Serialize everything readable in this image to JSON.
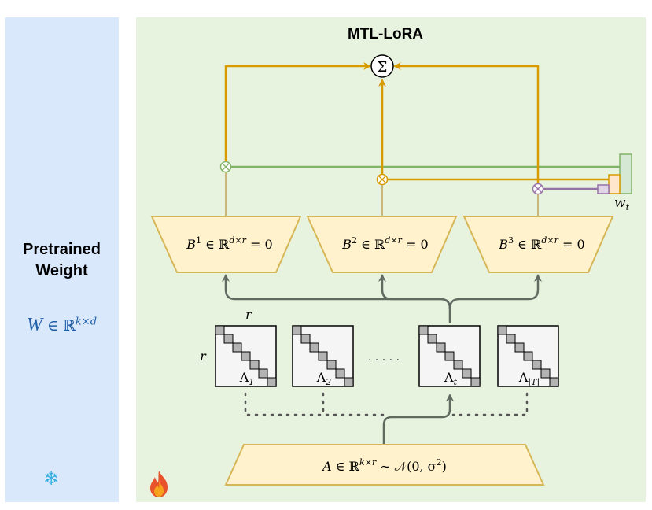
{
  "title": "MTL-LoRA",
  "pretrained": {
    "label": "Pretrained\nWeight",
    "formula": {
      "var": "W",
      "set": "∈ ℝ",
      "exp": "k×d"
    }
  },
  "sum_symbol": "Σ",
  "weights_label": "w",
  "weights_label_sub": "t",
  "up_projections": [
    {
      "name": "B",
      "sup": "1",
      "expr": "∈ ℝ",
      "exp": "d×r",
      "tail": "= 0"
    },
    {
      "name": "B",
      "sup": "2",
      "expr": "∈ ℝ",
      "exp": "d×r",
      "tail": "= 0"
    },
    {
      "name": "B",
      "sup": "3",
      "expr": "∈ ℝ",
      "exp": "d×r",
      "tail": "= 0"
    }
  ],
  "matrices": [
    {
      "symbol": "Λ",
      "sub": "1"
    },
    {
      "symbol": "Λ",
      "sub": "2"
    },
    {
      "symbol": "Λ",
      "sub": "t"
    },
    {
      "symbol": "Λ",
      "sub": "|T|"
    }
  ],
  "dims": {
    "top": "r",
    "side": "r"
  },
  "ellipsis": "· · · · ·",
  "down_projection": "A ∈ ℝ^{k×r} ∼ 𝒩(0, σ²)",
  "down_projection_parts": {
    "a": "A",
    "set": "∈ ℝ",
    "exp": "k×r",
    "dist": "∼ 𝒩(0, σ",
    "sq": "2",
    "close": ")"
  },
  "icons": {
    "frozen": "snowflake-icon",
    "trainable": "fire-icon"
  },
  "colors": {
    "frozen_panel": "#dae8fc",
    "trainable_panel": "#e8f3df",
    "trapezoid_fill": "#fff2cc",
    "trapezoid_stroke": "#d6b656",
    "main_arrow": "#d79b00",
    "gray_arrow": "#606a60",
    "green_line": "#82b366",
    "purple_line": "#9673a6"
  }
}
